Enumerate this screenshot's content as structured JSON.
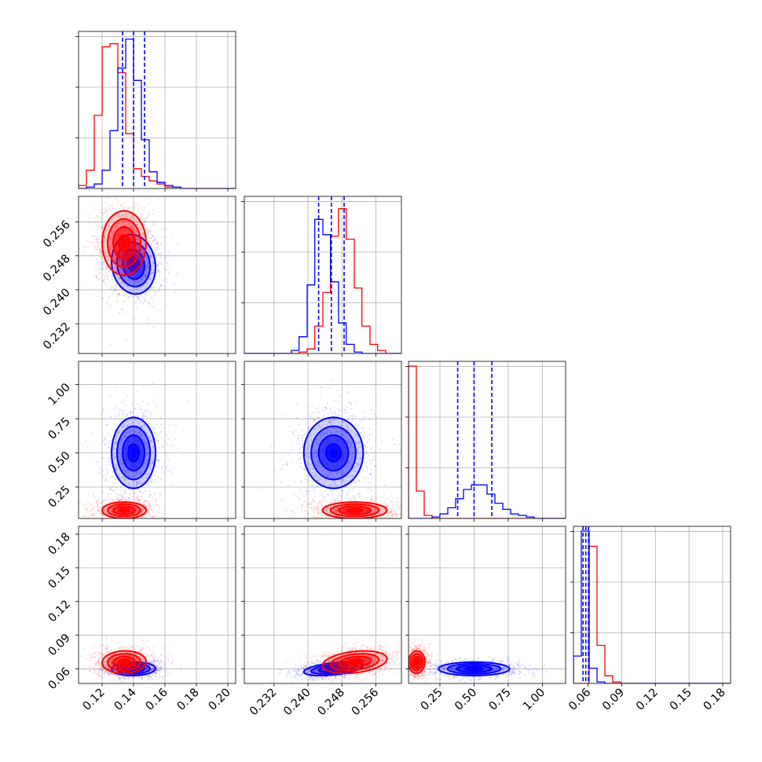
{
  "colors": {
    "red": "#ff0000",
    "blue": "#0000ff",
    "grid": "#b0b0b0"
  },
  "chart_data": {
    "type": "corner",
    "grid": true,
    "params": [
      {
        "range": [
          0.105,
          0.205
        ],
        "ticks": [
          0.12,
          0.14,
          0.16,
          0.18,
          0.2
        ],
        "tick_labels": [
          "0.12",
          "0.14",
          "0.16",
          "0.18",
          "0.20"
        ]
      },
      {
        "range": [
          0.225,
          0.262
        ],
        "ticks": [
          0.232,
          0.24,
          0.248,
          0.256
        ],
        "tick_labels": [
          "0.232",
          "0.240",
          "0.248",
          "0.256"
        ]
      },
      {
        "range": [
          0.02,
          1.17
        ],
        "ticks": [
          0.25,
          0.5,
          0.75,
          1.0
        ],
        "tick_labels": [
          "0.25",
          "0.50",
          "0.75",
          "1.00"
        ]
      },
      {
        "range": [
          0.047,
          0.187
        ],
        "ticks": [
          0.06,
          0.09,
          0.12,
          0.15,
          0.18
        ],
        "tick_labels": [
          "0.06",
          "0.09",
          "0.12",
          "0.15",
          "0.18"
        ]
      }
    ],
    "series": [
      {
        "color": "red",
        "means": [
          0.134,
          0.251,
          0.08,
          0.066
        ],
        "sds": [
          0.007,
          0.0038,
          0.03,
          0.005
        ],
        "hist": [
          {
            "edges": [
              0.105,
              0.11,
              0.115,
              0.12,
              0.125,
              0.13,
              0.135,
              0.14,
              0.145,
              0.15,
              0.155,
              0.16,
              0.165,
              0.17,
              0.175,
              0.18,
              0.185,
              0.19,
              0.195,
              0.2,
              0.205
            ],
            "counts": [
              2,
              12,
              48,
              93,
              95,
              76,
              36,
              13,
              8,
              5,
              3,
              1,
              1,
              0,
              0,
              0,
              0,
              0,
              0,
              0
            ]
          },
          {
            "edges": [
              0.225,
              0.2268,
              0.2287,
              0.2305,
              0.2324,
              0.2342,
              0.2361,
              0.2379,
              0.2398,
              0.2416,
              0.2435,
              0.2453,
              0.2472,
              0.249,
              0.2509,
              0.2527,
              0.2546,
              0.2564,
              0.2583,
              0.2601,
              0.262
            ],
            "counts": [
              0,
              0,
              0,
              0,
              0,
              0,
              0,
              1,
              3,
              18,
              40,
              77,
              95,
              75,
              43,
              18,
              6,
              2,
              0,
              0
            ]
          },
          {
            "edges": [
              0.02,
              0.0775,
              0.135,
              0.1925,
              0.25,
              0.3075,
              0.365,
              0.4225,
              0.48,
              0.5375,
              0.595,
              0.6525,
              0.71,
              0.7675,
              0.825,
              0.8825,
              0.94,
              0.9975,
              1.055,
              1.1125,
              1.17
            ],
            "counts": [
              100,
              18,
              2,
              0,
              0,
              0,
              0,
              0,
              0,
              0,
              0,
              0,
              0,
              0,
              0,
              0,
              0,
              0,
              0,
              0
            ]
          },
          {
            "edges": [
              0.047,
              0.054,
              0.061,
              0.068,
              0.075,
              0.082,
              0.089,
              0.096,
              0.103,
              0.11,
              0.117,
              0.124,
              0.131,
              0.138,
              0.145,
              0.152,
              0.159,
              0.166,
              0.173,
              0.18,
              0.187
            ],
            "counts": [
              0,
              0,
              90,
              25,
              5,
              1,
              0,
              0,
              0,
              0,
              0,
              0,
              0,
              0,
              0,
              0,
              0,
              0,
              0,
              0
            ]
          }
        ],
        "quantiles": []
      },
      {
        "color": "blue",
        "means": [
          0.14,
          0.246,
          0.5,
          0.06
        ],
        "sds": [
          0.007,
          0.0035,
          0.13,
          0.003
        ],
        "hist": [
          {
            "edges": [
              0.105,
              0.11,
              0.115,
              0.12,
              0.125,
              0.13,
              0.135,
              0.14,
              0.145,
              0.15,
              0.155,
              0.16,
              0.165,
              0.17,
              0.175,
              0.18,
              0.185,
              0.19,
              0.195,
              0.2,
              0.205
            ],
            "counts": [
              0,
              1,
              3,
              12,
              38,
              79,
              98,
              71,
              32,
              11,
              4,
              2,
              1,
              0,
              0,
              0,
              0,
              0,
              0,
              0
            ]
          },
          {
            "edges": [
              0.225,
              0.2268,
              0.2287,
              0.2305,
              0.2324,
              0.2342,
              0.2361,
              0.2379,
              0.2398,
              0.2416,
              0.2435,
              0.2453,
              0.2472,
              0.249,
              0.2509,
              0.2527,
              0.2546,
              0.2564,
              0.2583,
              0.2601,
              0.262
            ],
            "counts": [
              0,
              0,
              0,
              0,
              0,
              0,
              2,
              11,
              45,
              88,
              78,
              47,
              20,
              6,
              1,
              0,
              0,
              0,
              0,
              0
            ]
          },
          {
            "edges": [
              0.02,
              0.0775,
              0.135,
              0.1925,
              0.25,
              0.3075,
              0.365,
              0.4225,
              0.48,
              0.5375,
              0.595,
              0.6525,
              0.71,
              0.7675,
              0.825,
              0.8825,
              0.94,
              0.9975,
              1.055,
              1.1125,
              1.17
            ],
            "counts": [
              0,
              0,
              0,
              1,
              3,
              7,
              13,
              19,
              22,
              22,
              16,
              10,
              6,
              3,
              2,
              1,
              0,
              0,
              0,
              0
            ]
          },
          {
            "edges": [
              0.047,
              0.054,
              0.061,
              0.068,
              0.075,
              0.082,
              0.089,
              0.096,
              0.103,
              0.11,
              0.117,
              0.124,
              0.131,
              0.138,
              0.145,
              0.152,
              0.159,
              0.166,
              0.173,
              0.18,
              0.187
            ],
            "counts": [
              18,
              100,
              10,
              1,
              0,
              0,
              0,
              0,
              0,
              0,
              0,
              0,
              0,
              0,
              0,
              0,
              0,
              0,
              0,
              0
            ]
          }
        ],
        "quantiles": [
          [
            0.133,
            0.14,
            0.147
          ],
          [
            0.2425,
            0.2455,
            0.2485
          ],
          [
            0.38,
            0.5,
            0.63
          ],
          [
            0.0555,
            0.058,
            0.0605
          ]
        ]
      }
    ]
  }
}
